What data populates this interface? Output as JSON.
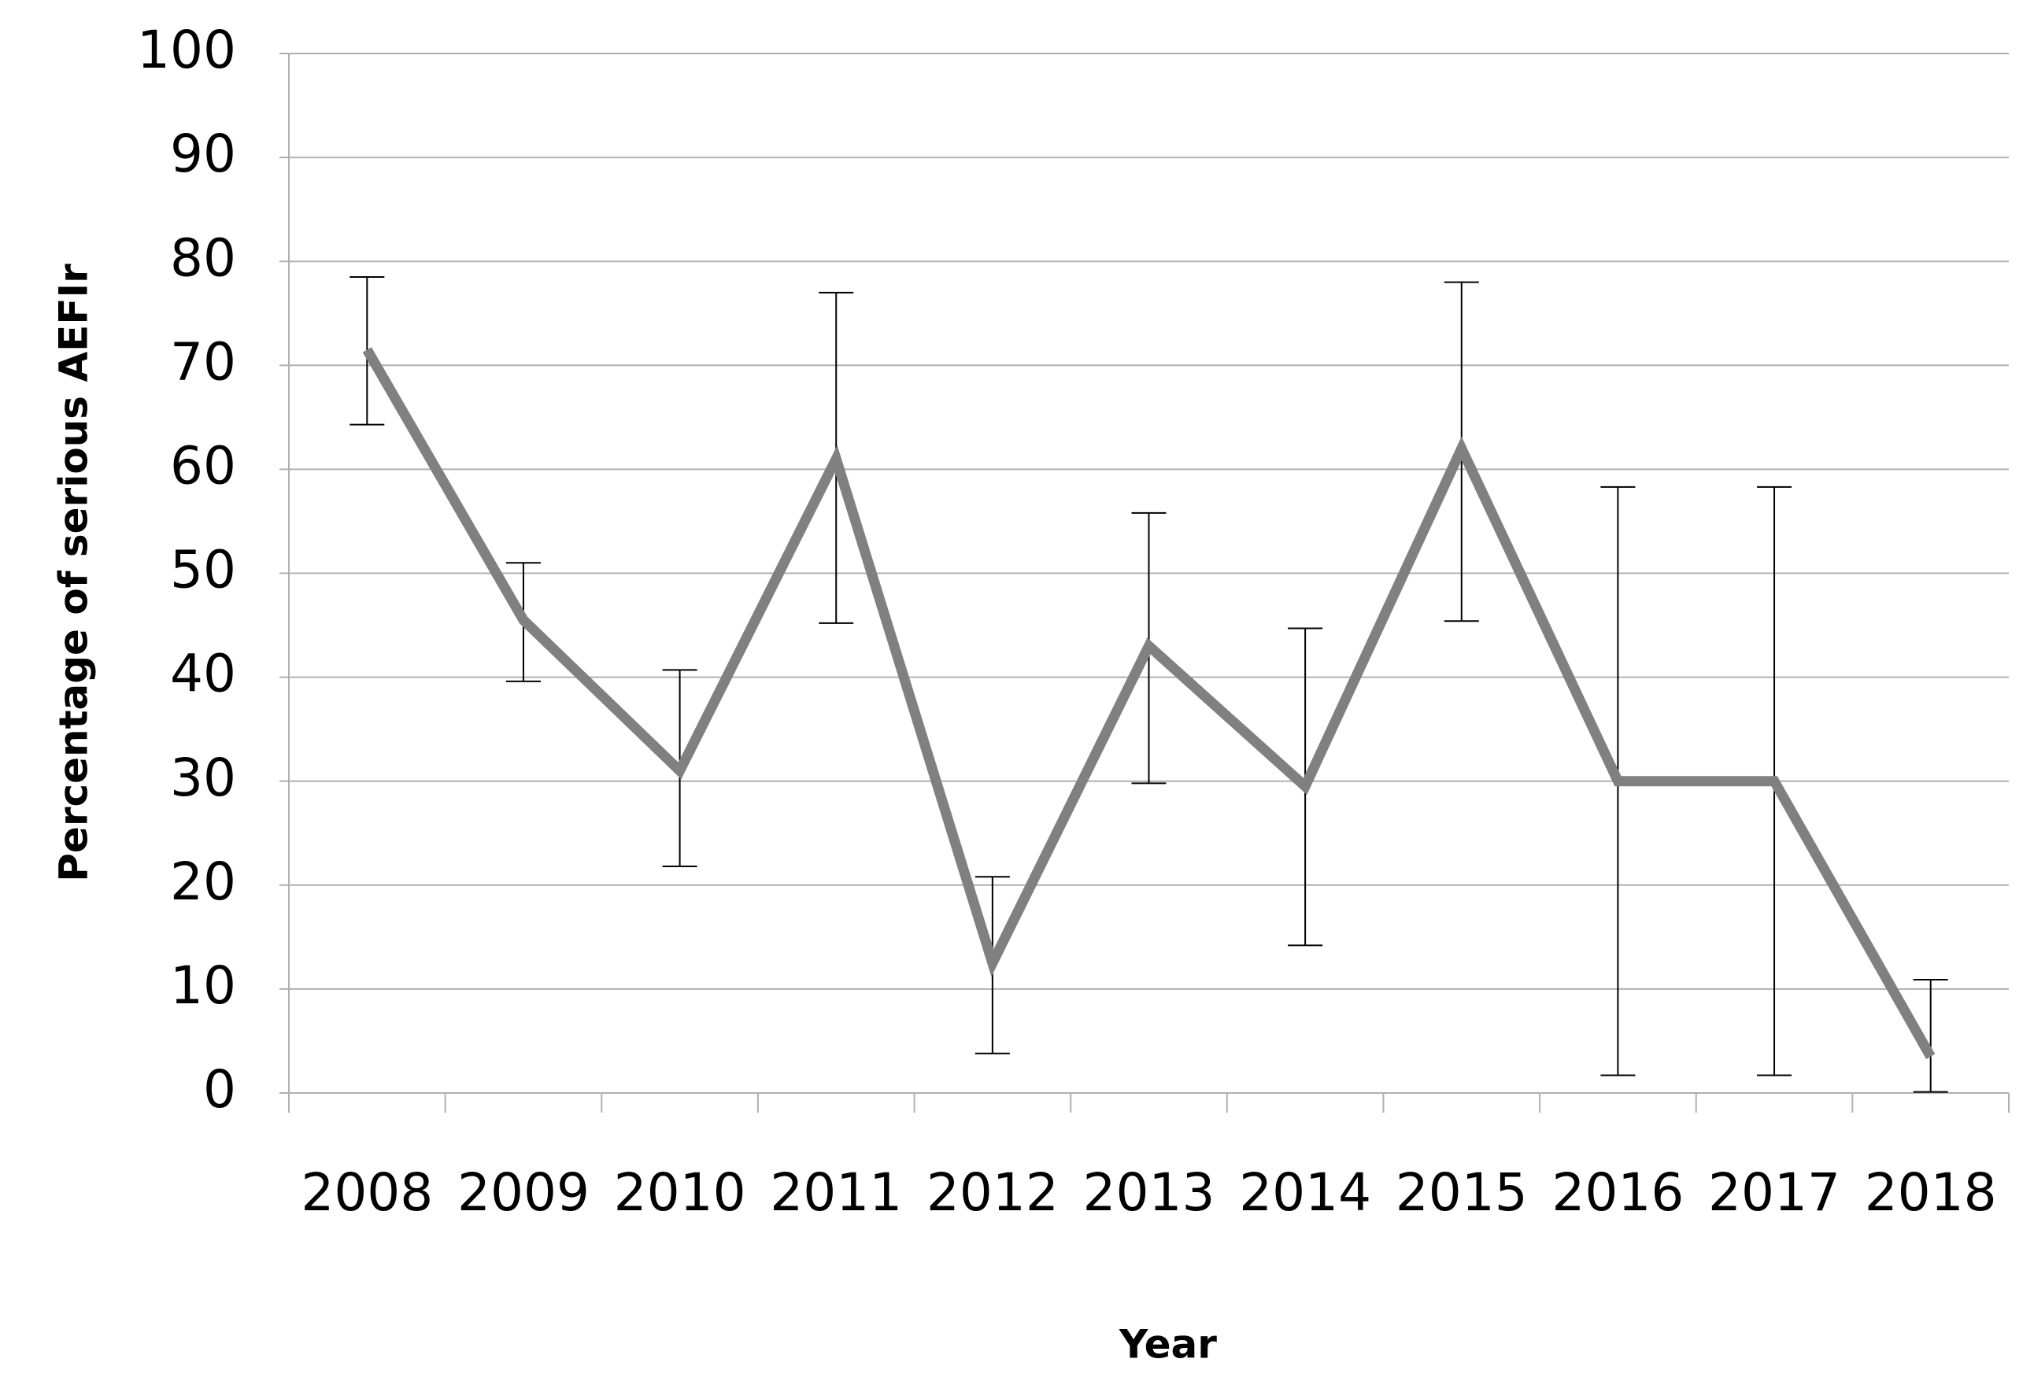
{
  "chart_data": {
    "type": "line",
    "x_label": "Year",
    "y_label": "Percentage  of serious AEFIr",
    "categories": [
      "2008",
      "2009",
      "2010",
      "2011",
      "2012",
      "2013",
      "2014",
      "2015",
      "2016",
      "2017",
      "2018"
    ],
    "series": [
      {
        "name": "Percentage of serious AEFIr",
        "color": "#808080",
        "values": [
          71.5,
          45.5,
          31,
          61,
          12.5,
          43,
          29.5,
          62,
          30,
          30,
          3.5
        ],
        "upper": [
          78.5,
          51,
          40.7,
          77,
          20.8,
          55.8,
          44.7,
          78,
          58.3,
          58.3,
          10.9
        ],
        "lower": [
          64.3,
          39.6,
          21.8,
          45.2,
          3.8,
          29.8,
          14.2,
          45.4,
          1.7,
          1.7,
          0.1
        ]
      }
    ],
    "ylim": [
      0,
      100
    ],
    "yticks": [
      0,
      10,
      20,
      30,
      40,
      50,
      60,
      70,
      80,
      90,
      100
    ],
    "grid": true
  }
}
